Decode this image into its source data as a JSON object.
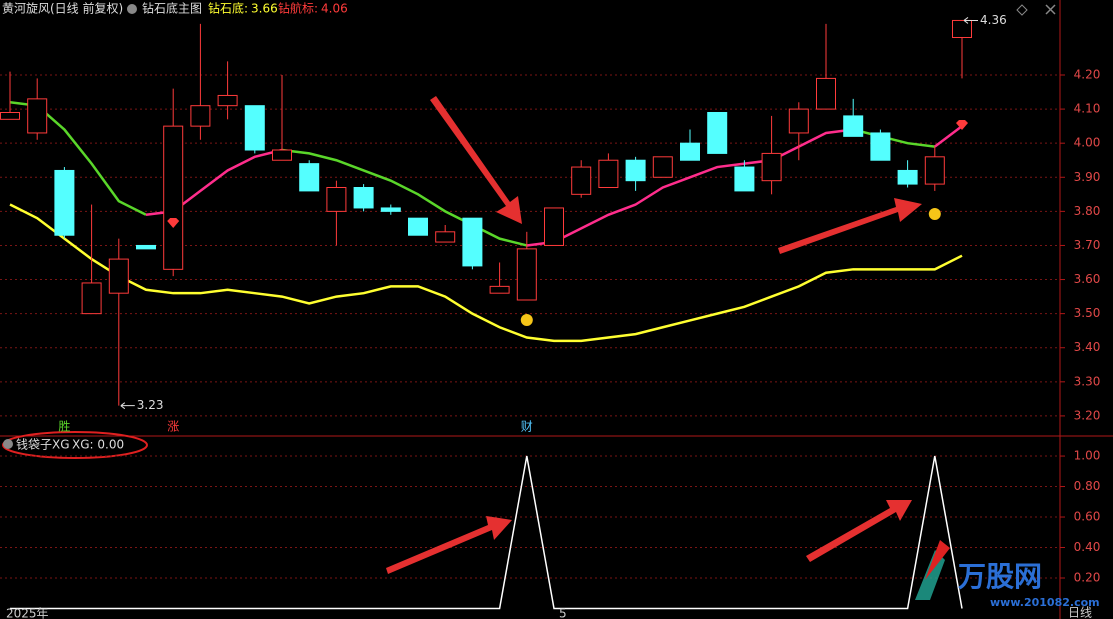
{
  "header": {
    "title": "黄河旋风(日线 前复权)",
    "indicator": "钻石底主图",
    "label1": "钻石底:",
    "value1": "3.66",
    "label2": "钻航标:",
    "value2": "4.06"
  },
  "chart_data": [
    {
      "type": "candlestick",
      "open": [
        4.07,
        4.03,
        3.92,
        3.5,
        3.56,
        3.7,
        3.63,
        4.05,
        4.11,
        4.11,
        3.95,
        3.94,
        3.8,
        3.87,
        3.81,
        3.78,
        3.71,
        3.78,
        3.56,
        3.54,
        3.7,
        3.85,
        3.87,
        3.95,
        3.9,
        4.0,
        4.09,
        3.93,
        3.89,
        4.03,
        4.1,
        4.08,
        4.03,
        3.92,
        3.88,
        4.31
      ],
      "high": [
        4.21,
        4.19,
        3.93,
        3.82,
        3.72,
        3.7,
        4.16,
        4.35,
        4.24,
        4.11,
        4.2,
        3.95,
        3.89,
        3.88,
        3.82,
        3.78,
        3.76,
        3.78,
        3.65,
        3.74,
        3.81,
        3.95,
        3.97,
        3.96,
        3.96,
        4.04,
        4.09,
        3.95,
        4.08,
        4.12,
        4.35,
        4.13,
        4.04,
        3.95,
        3.99,
        4.36
      ],
      "low": [
        4.07,
        4.01,
        3.72,
        3.5,
        3.23,
        3.69,
        3.61,
        4.01,
        4.07,
        3.97,
        3.95,
        3.86,
        3.7,
        3.8,
        3.79,
        3.73,
        3.71,
        3.63,
        3.56,
        3.54,
        3.7,
        3.84,
        3.87,
        3.86,
        3.9,
        3.95,
        3.97,
        3.86,
        3.85,
        3.95,
        4.1,
        4.02,
        3.95,
        3.87,
        3.86,
        4.19
      ],
      "close": [
        4.09,
        4.13,
        3.73,
        3.59,
        3.66,
        3.69,
        4.05,
        4.11,
        4.14,
        3.98,
        3.98,
        3.86,
        3.87,
        3.81,
        3.8,
        3.73,
        3.74,
        3.64,
        3.58,
        3.69,
        3.81,
        3.93,
        3.95,
        3.89,
        3.96,
        3.95,
        3.97,
        3.86,
        3.97,
        4.1,
        4.19,
        4.02,
        3.95,
        3.88,
        3.96,
        4.36
      ],
      "up_color": "#ff3b3b",
      "down_color": "#54ffff",
      "lines": [
        {
          "values": [
            4.12,
            4.11,
            4.04,
            3.94,
            3.83,
            3.79,
            3.8,
            3.86,
            3.92,
            3.96,
            3.98,
            3.97,
            3.95,
            3.92,
            3.89,
            3.85,
            3.8,
            3.76,
            3.72,
            3.7,
            3.71,
            3.75,
            3.79,
            3.82,
            3.87,
            3.9,
            3.93,
            3.94,
            3.95,
            3.99,
            4.03,
            4.04,
            4.02,
            4.0,
            3.99,
            4.05
          ],
          "rising_color": "#ff2d8c",
          "falling_color": "#5ad62a"
        },
        {
          "values": [
            3.82,
            3.78,
            3.72,
            3.66,
            3.61,
            3.57,
            3.56,
            3.56,
            3.57,
            3.56,
            3.55,
            3.53,
            3.55,
            3.56,
            3.58,
            3.58,
            3.55,
            3.5,
            3.46,
            3.43,
            3.42,
            3.42,
            3.43,
            3.44,
            3.46,
            3.48,
            3.5,
            3.52,
            3.55,
            3.58,
            3.62,
            3.63,
            3.63,
            3.63,
            3.63,
            3.67
          ],
          "color": "#ffff30"
        }
      ],
      "ylim": [
        3.144,
        4.42
      ],
      "yticks": [
        {
          "value": 4.2,
          "label": "4.20"
        },
        {
          "value": 4.1,
          "label": "4.10"
        },
        {
          "value": 4.0,
          "label": "4.00"
        },
        {
          "value": 3.9,
          "label": "3.90"
        },
        {
          "value": 3.8,
          "label": "3.80"
        },
        {
          "value": 3.7,
          "label": "3.70"
        },
        {
          "value": 3.6,
          "label": "3.60"
        },
        {
          "value": 3.5,
          "label": "3.50"
        },
        {
          "value": 3.4,
          "label": "3.40"
        },
        {
          "value": 3.3,
          "label": "3.30"
        },
        {
          "value": 3.2,
          "label": "3.20"
        }
      ],
      "annotations": [
        {
          "value": 3.23,
          "index": 4
        },
        {
          "value": 4.36,
          "index": 35
        }
      ],
      "signals": [
        {
          "text": "胜",
          "index": 2
        },
        {
          "text": "涨",
          "index": 6
        },
        {
          "text": "财",
          "index": 19
        }
      ],
      "grid": true
    },
    {
      "type": "line",
      "title": "钱袋子XG",
      "subtitle": "XG: 0.00",
      "categories": [
        "2025年",
        null,
        null,
        null,
        null,
        null,
        null,
        null,
        null,
        null,
        null,
        null,
        null,
        null,
        null,
        null,
        null,
        null,
        null,
        null,
        "5",
        null,
        null,
        null,
        null,
        null,
        null,
        null,
        null,
        null,
        null,
        null,
        null,
        null,
        null,
        null
      ],
      "values": [
        0,
        0,
        0,
        0,
        0,
        0,
        0,
        0,
        0,
        0,
        0,
        0,
        0,
        0,
        0,
        0,
        0,
        0,
        0,
        1,
        0,
        0,
        0,
        0,
        0,
        0,
        0,
        0,
        0,
        0,
        0,
        0,
        0,
        0,
        1,
        0
      ],
      "color": "#ffffff",
      "ylim": [
        -0.01,
        1.125
      ],
      "yticks": [
        {
          "value": 1,
          "label": "1.00"
        },
        {
          "value": 0.8,
          "label": "0.80"
        },
        {
          "value": 0.6,
          "label": "0.60"
        },
        {
          "value": 0.4,
          "label": "0.40"
        },
        {
          "value": 0.2,
          "label": "0.20"
        }
      ],
      "period_label": "日线",
      "grid": true
    }
  ],
  "watermark": {
    "name": "万股网",
    "url": "www.201082.com"
  }
}
